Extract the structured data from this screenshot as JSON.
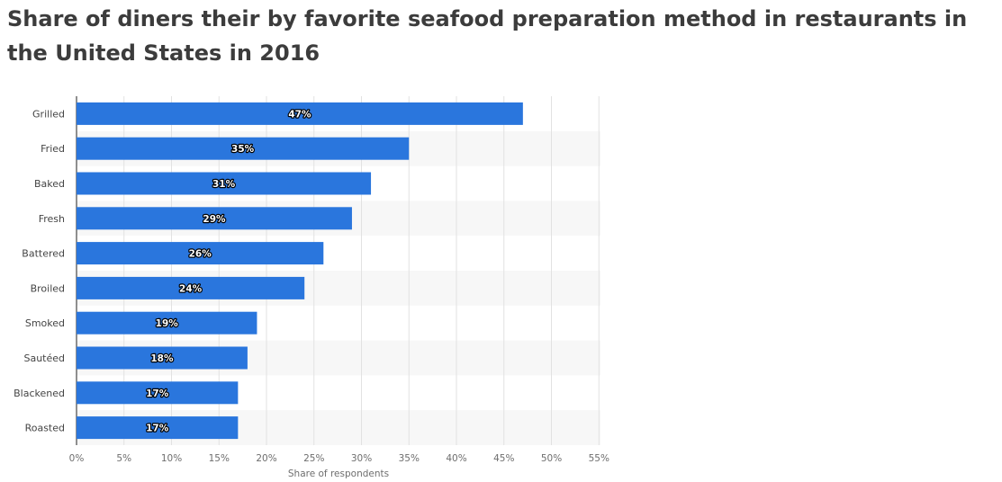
{
  "title": "Share of diners their by favorite seafood preparation method in restaurants in the United States in 2016",
  "chart_data": {
    "type": "bar",
    "orientation": "horizontal",
    "categories": [
      "Grilled",
      "Fried",
      "Baked",
      "Fresh",
      "Battered",
      "Broiled",
      "Smoked",
      "Sautéed",
      "Blackened",
      "Roasted"
    ],
    "values": [
      47,
      35,
      31,
      29,
      26,
      24,
      19,
      18,
      17,
      17
    ],
    "data_labels": [
      "47%",
      "35%",
      "31%",
      "29%",
      "26%",
      "24%",
      "19%",
      "18%",
      "17%",
      "17%"
    ],
    "x_ticks": [
      "0%",
      "5%",
      "10%",
      "15%",
      "20%",
      "25%",
      "30%",
      "35%",
      "40%",
      "45%",
      "50%",
      "55%"
    ],
    "xlabel": "Share of respondents",
    "ylabel": "",
    "xlim": [
      0,
      55
    ],
    "bar_color": "#2a76dd",
    "grid": true,
    "legend": "none"
  }
}
